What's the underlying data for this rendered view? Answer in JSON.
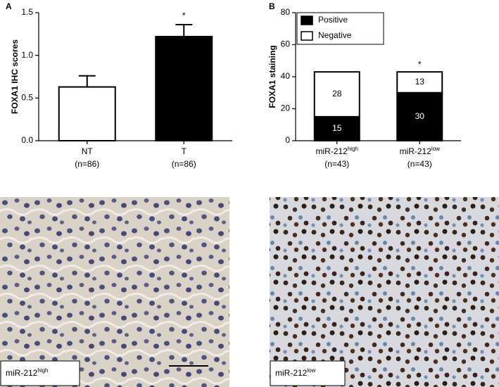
{
  "chart_data": [
    {
      "type": "bar",
      "panel": "A",
      "ylabel": "FOXA1 IHC scores",
      "categories": [
        "NT",
        "T"
      ],
      "category_notes": [
        "(n=86)",
        "(n=86)"
      ],
      "values": [
        0.63,
        1.22
      ],
      "errors": [
        0.13,
        0.14
      ],
      "colors": [
        "#ffffff",
        "#000000"
      ],
      "annotations": [
        null,
        "*"
      ],
      "ylim": [
        0,
        1.5
      ],
      "yticks": [
        {
          "value": 0,
          "label": "0.0"
        },
        0.5,
        {
          "value": 1,
          "label": "1.0"
        },
        1.5
      ]
    },
    {
      "type": "stacked_bar",
      "panel": "B",
      "ylabel": "FOXA1 staining",
      "categories": [
        "miR-212",
        "miR-212"
      ],
      "category_superscripts": [
        "high",
        "low"
      ],
      "category_notes": [
        "(n=43)",
        "(n=43)"
      ],
      "series": [
        {
          "name": "Positive",
          "color": "#000000",
          "values": [
            15,
            30
          ]
        },
        {
          "name": "Negative",
          "color": "#ffffff",
          "values": [
            28,
            13
          ]
        }
      ],
      "annotations": [
        null,
        "*"
      ],
      "legend": "top-left",
      "ylim": [
        0,
        80
      ],
      "yticks": [
        0,
        20,
        40,
        60,
        80
      ]
    }
  ],
  "images": [
    {
      "label": "miR-212",
      "superscript": "high"
    },
    {
      "label": "miR-212",
      "superscript": "low"
    }
  ]
}
